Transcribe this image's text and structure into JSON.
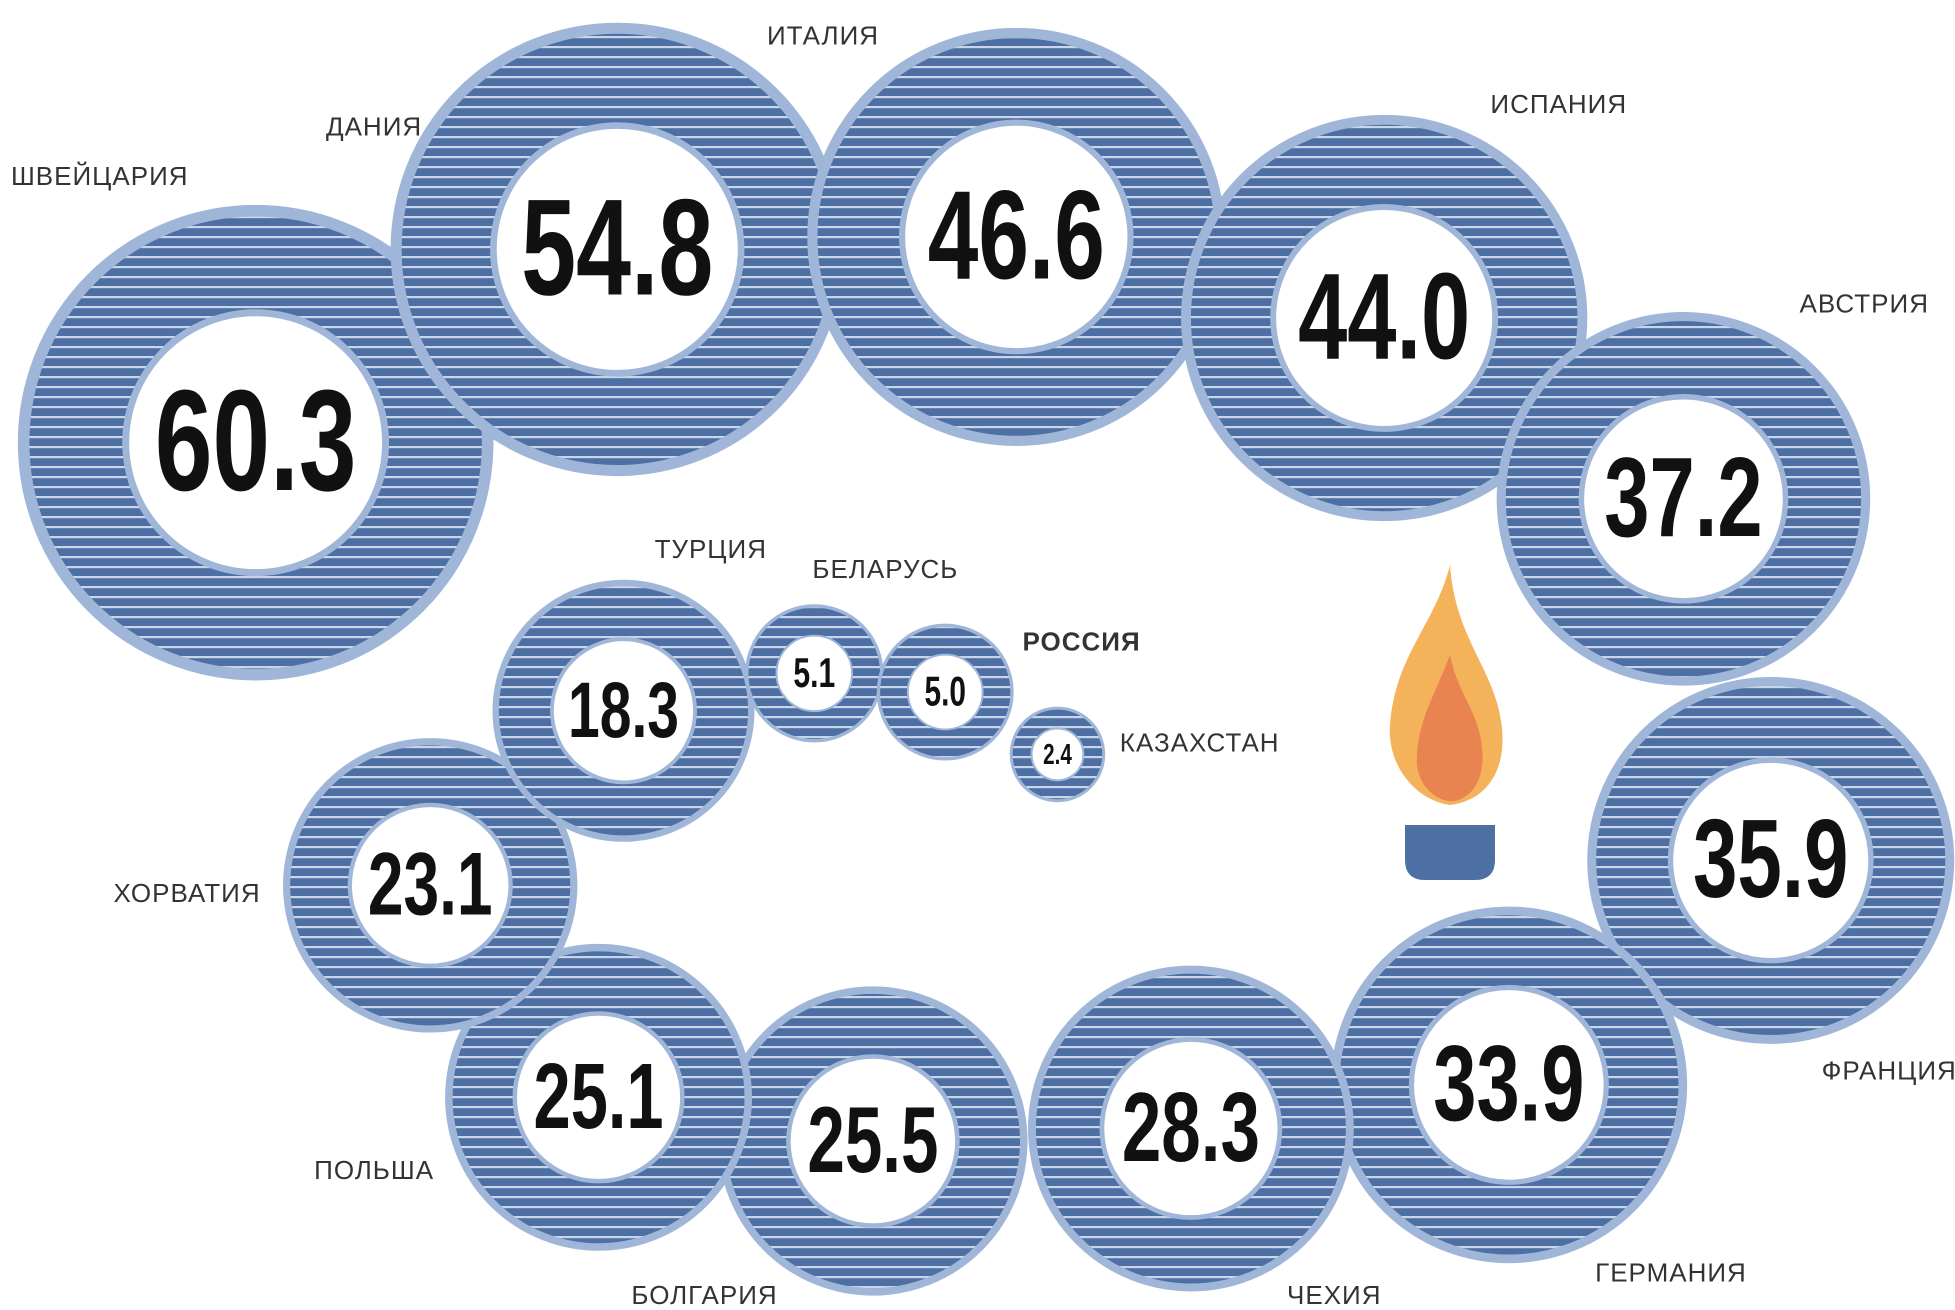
{
  "chart_data": {
    "type": "bubble",
    "categories": [
      "ШВЕЙЦАРИЯ",
      "ДАНИЯ",
      "ИТАЛИЯ",
      "ИСПАНИЯ",
      "АВСТРИЯ",
      "ФРАНЦИЯ",
      "ГЕРМАНИЯ",
      "ЧЕХИЯ",
      "БОЛГАРИЯ",
      "ПОЛЬША",
      "ХОРВАТИЯ",
      "ТУРЦИЯ",
      "БЕЛАРУСЬ",
      "РОССИЯ",
      "КАЗАХСТАН"
    ],
    "values": [
      60.3,
      54.8,
      46.6,
      44,
      37.2,
      35.9,
      33.9,
      28.3,
      25.5,
      25.1,
      23.1,
      18.3,
      5.1,
      5,
      2.4
    ],
    "value_labels": [
      "60.3",
      "54.8",
      "46.6",
      "44.0",
      "37.2",
      "35.9",
      "33.9",
      "28.3",
      "25.5",
      "25.1",
      "23.1",
      "18.3",
      "5.1",
      "5.0",
      "2.4"
    ],
    "color": "#4d6fa3"
  }
}
